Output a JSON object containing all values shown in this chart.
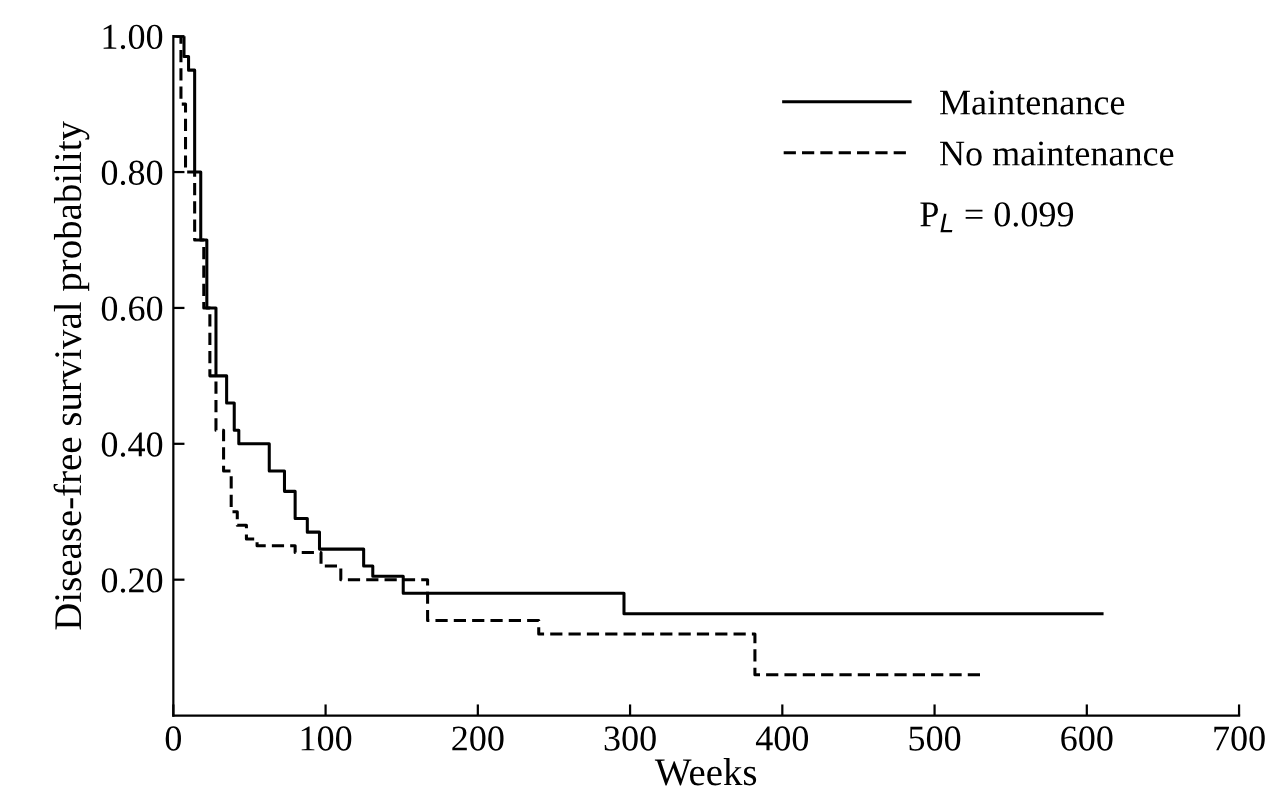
{
  "chart_data": {
    "type": "step",
    "xlabel": "Weeks",
    "ylabel": "Disease-free survival probability",
    "xlim": [
      0,
      700
    ],
    "ylim": [
      0,
      1.0
    ],
    "xticks": [
      0,
      100,
      200,
      300,
      400,
      500,
      600,
      700
    ],
    "yticks": [
      {
        "value": 0.2,
        "label": "0.20"
      },
      {
        "value": 0.4,
        "label": "0.40"
      },
      {
        "value": 0.6,
        "label": "0.60"
      },
      {
        "value": 0.8,
        "label": "0.80"
      },
      {
        "value": 1.0,
        "label": "1.00"
      }
    ],
    "series": [
      {
        "name": "Maintenance",
        "color": "#000000",
        "line_style": "solid",
        "x": [
          1,
          7,
          10,
          14,
          18,
          22,
          28,
          35,
          40,
          43,
          47,
          63,
          73,
          80,
          88,
          96,
          125,
          131,
          151,
          296,
          610
        ],
        "values": [
          1.0,
          0.97,
          0.95,
          0.8,
          0.7,
          0.6,
          0.5,
          0.46,
          0.42,
          0.4,
          0.4,
          0.36,
          0.33,
          0.29,
          0.27,
          0.245,
          0.22,
          0.205,
          0.18,
          0.15,
          0.15
        ]
      },
      {
        "name": "No maintenance",
        "color": "#000000",
        "line_style": "dashed",
        "x": [
          2,
          5,
          8,
          14,
          20,
          24,
          28,
          33,
          38,
          42,
          48,
          55,
          80,
          97,
          110,
          167,
          240,
          382,
          530
        ],
        "values": [
          1.0,
          0.9,
          0.8,
          0.7,
          0.6,
          0.5,
          0.42,
          0.36,
          0.3,
          0.28,
          0.26,
          0.25,
          0.24,
          0.22,
          0.2,
          0.14,
          0.12,
          0.06,
          0.06
        ]
      }
    ],
    "legend": "top right",
    "grid": false,
    "annotations": [
      "P$_{L}$ = 0.099"
    ]
  }
}
